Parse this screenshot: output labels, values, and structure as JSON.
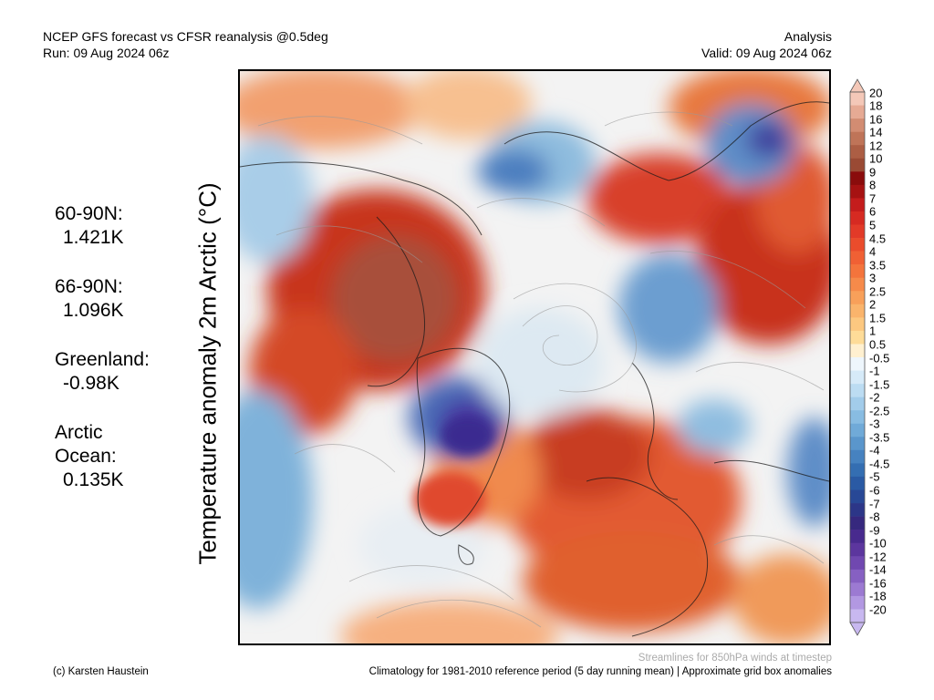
{
  "header": {
    "title_line1": "NCEP GFS forecast vs CFSR reanalysis @0.5deg",
    "title_line2": "Run: 09 Aug 2024 06z",
    "right_line1": "Analysis",
    "right_line2": "Valid: 09 Aug 2024 06z"
  },
  "vertical_label": "Temperature anomaly 2m Arctic (°C)",
  "stats": [
    {
      "label": "60-90N:",
      "value": "1.421K"
    },
    {
      "label": "66-90N:",
      "value": "1.096K"
    },
    {
      "label": "Greenland:",
      "value": "-0.98K"
    },
    {
      "label": "Arctic\nOcean:",
      "value": "0.135K"
    }
  ],
  "colorbar": {
    "labels": [
      "20",
      "18",
      "16",
      "14",
      "12",
      "10",
      "9",
      "8",
      "7",
      "6",
      "5",
      "4.5",
      "4",
      "3.5",
      "3",
      "2.5",
      "2",
      "1.5",
      "1",
      "0.5",
      "-0.5",
      "-1",
      "-1.5",
      "-2",
      "-2.5",
      "-3",
      "-3.5",
      "-4",
      "-4.5",
      "-5",
      "-6",
      "-7",
      "-8",
      "-9",
      "-10",
      "-12",
      "-14",
      "-16",
      "-18",
      "-20"
    ],
    "colors": [
      "#f4c8b8",
      "#e6aa94",
      "#d28c72",
      "#bf7458",
      "#ac5e44",
      "#9a4a34",
      "#8a0c0c",
      "#a61212",
      "#c41c1c",
      "#d62a22",
      "#e23a28",
      "#ea4c2c",
      "#f06034",
      "#f4743c",
      "#f68a4a",
      "#f8a05a",
      "#fab46c",
      "#fcc880",
      "#fedc98",
      "#fff0d0",
      "#eef6fc",
      "#d6eaf8",
      "#bcdcf2",
      "#a2ccea",
      "#88bce2",
      "#70aad8",
      "#5a96cc",
      "#4682c0",
      "#346eb2",
      "#2a5aa4",
      "#284896",
      "#2c3688",
      "#36287e",
      "#482a8e",
      "#5c369e",
      "#7048b0",
      "#8660c2",
      "#9c7ad2",
      "#b298e2",
      "#c8b8f0"
    ]
  },
  "footer": {
    "credit": "(c) Karsten Haustein",
    "streamlines_note": "Streamlines for 850hPa winds at timestep",
    "climatology_note": "Climatology for 1981-2010 reference period (5 day running mean) | Approximate grid box anomalies"
  }
}
